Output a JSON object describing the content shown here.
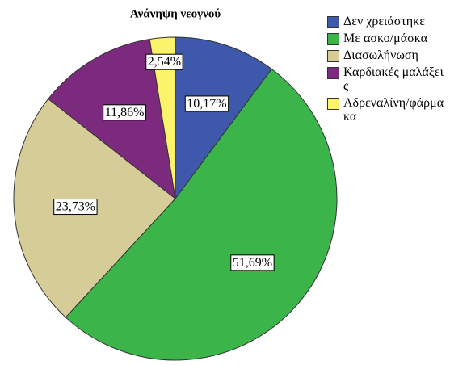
{
  "chart_data": {
    "type": "pie",
    "title": "Ανάνηψη νεογνού",
    "categories": [
      "Δεν χρειάστηκε",
      "Με ασκο/μάσκα",
      "Διασωλήνωση",
      "Καρδιακές μαλάξεις",
      "Αδρεναλίνη/φάρμακα"
    ],
    "values": [
      10.17,
      51.69,
      23.73,
      11.86,
      2.54
    ],
    "value_labels": [
      "10,17%",
      "51,69%",
      "23,73%",
      "11,86%",
      "2,54%"
    ],
    "colors": [
      "#3e58ab",
      "#3bb54a",
      "#d5cc97",
      "#7c2a7d",
      "#fbf46b"
    ],
    "legend": "top-right"
  }
}
